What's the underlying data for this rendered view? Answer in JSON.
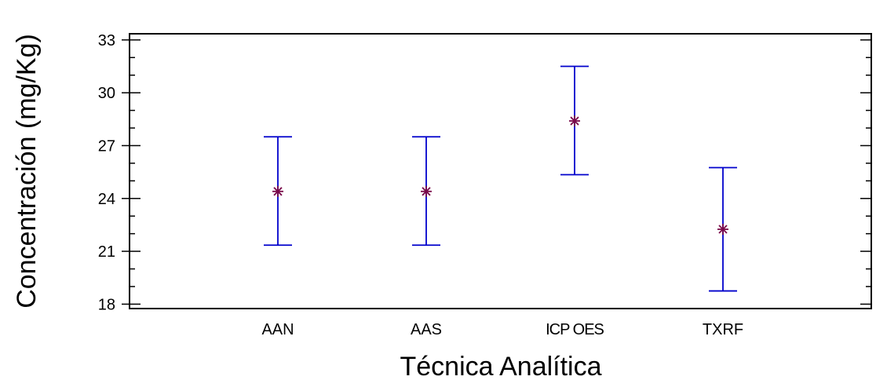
{
  "chart_data": {
    "type": "scatter",
    "xlabel": "Técnica Analítica",
    "ylabel": "Concentración (mg/Kg)",
    "categories": [
      "AAN",
      "AAS",
      "ICP OES",
      "TXRF"
    ],
    "series": [
      {
        "means": [
          24.4,
          24.4,
          28.4,
          22.25
        ],
        "lower": [
          21.35,
          21.35,
          25.35,
          18.75
        ],
        "upper": [
          27.5,
          27.5,
          31.5,
          25.75
        ]
      }
    ],
    "yticks": [
      18,
      21,
      24,
      27,
      30,
      33
    ],
    "ylim": [
      17.75,
      33.35
    ],
    "xlim": [
      0,
      5
    ],
    "minor_tick_step": 1,
    "grid": false,
    "colors": {
      "errorbar": "#0000cc",
      "marker": "#7a0a4a",
      "axis": "#000000"
    }
  }
}
